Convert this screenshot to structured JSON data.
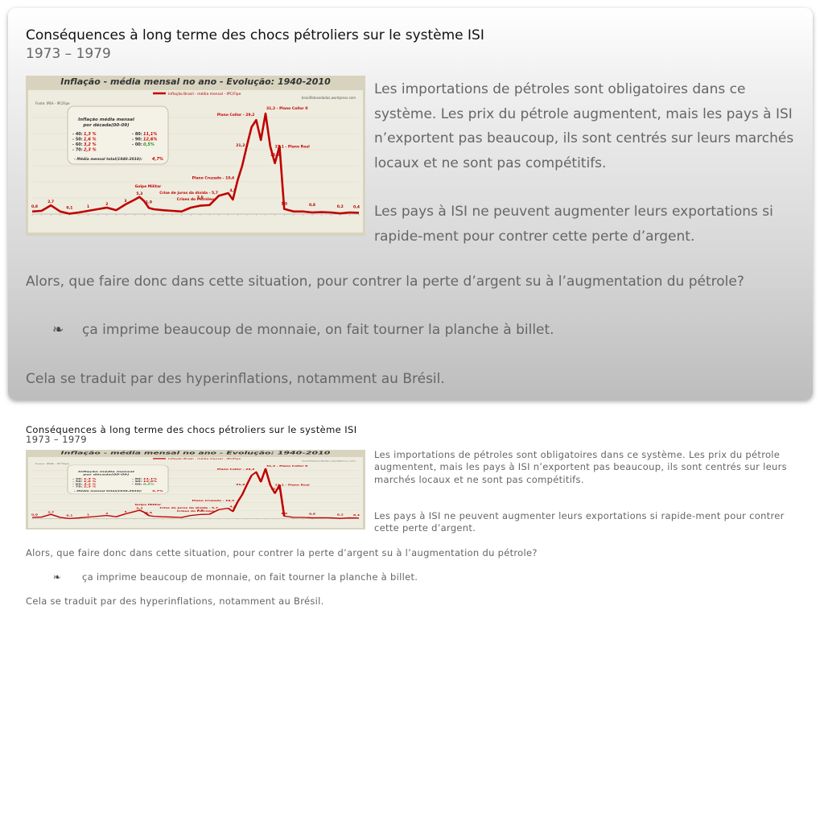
{
  "slide": {
    "title": "Conséquences à long terme des chocs pétroliers sur le système ISI",
    "subtitle": "1973 – 1979",
    "paragraph1": "Les importations de pétroles sont obligatoires dans ce système. Les prix du pétrole augmentent, mais les pays à ISI n’exportent pas beaucoup, ils sont centrés sur leurs marchés locaux et ne sont pas compétitifs.",
    "paragraph2": "Les pays à ISI ne peuvent augmenter leurs exportations si rapide-ment pour contrer cette perte d’argent.",
    "question": "Alors, que faire donc dans cette situation, pour contrer la perte d’argent su à l’augmentation du pétrole?",
    "bullet_glyph": "❧",
    "bullet": "ça imprime beaucoup de monnaie, on fait tourner la planche à billet.",
    "conclusion": "Cela se traduit par des hyperinflations, notamment au Brésil."
  },
  "figure": {
    "title": "Inflação - média mensal no ano - Evolução: 1940-2010",
    "legend": "Inflação Brasil - média mensal - IPC/Fipe",
    "source_left": "Fonte: IPEA - IPC/Fipe",
    "source_right": "brasilfatosedados.wordpress.com",
    "box_title_1": "Inflação média mensal",
    "box_title_2": "por década(00-09)",
    "decades": [
      {
        "label": "- 40:",
        "value": "1,3 %"
      },
      {
        "label": "- 50:",
        "value": "1,6 %"
      },
      {
        "label": "- 60:",
        "value": "3,2 %"
      },
      {
        "label": "- 70:",
        "value": "2,3 %"
      },
      {
        "label": "- 80:",
        "value": "11,1%"
      },
      {
        "label": "- 90:",
        "value": "12,6%"
      },
      {
        "label": "- 00:",
        "value": "0,5%"
      }
    ],
    "total_label": "- Média mensal total(1940-2010):",
    "total_value": "4,7%",
    "annotations": [
      {
        "text": "Plano Collor - 29,2"
      },
      {
        "text": "31,2 - Plano Collor II"
      },
      {
        "text": "21,1 - Plano Real"
      },
      {
        "text": "Plano Cruzado - 10,4"
      },
      {
        "text": "Crise de juros da dívida - 5,7"
      },
      {
        "text": "Crises do Petróleo"
      },
      {
        "text": "Golpe Militar"
      }
    ],
    "point_labels": [
      "0,8",
      "2,7",
      "0,1",
      "1",
      "2",
      "3",
      "5,3",
      "1,9",
      "2,6",
      "4,5",
      "21,2",
      "15,8",
      "1,6",
      "0,8",
      "0,2",
      "0,4"
    ]
  },
  "chart_data": {
    "type": "line",
    "title": "Inflação - média mensal no ano - Evolução: 1940-2010",
    "series": [
      {
        "name": "Inflação Brasil - média mensal - IPC/Fipe",
        "x": [
          1940,
          1942,
          1944,
          1946,
          1948,
          1950,
          1952,
          1954,
          1956,
          1958,
          1960,
          1962,
          1963,
          1964,
          1965,
          1966,
          1968,
          1970,
          1972,
          1974,
          1976,
          1978,
          1980,
          1982,
          1983,
          1984,
          1985,
          1986,
          1987,
          1988,
          1989,
          1990,
          1991,
          1992,
          1993,
          1994,
          1995,
          1996,
          1998,
          2000,
          2002,
          2004,
          2006,
          2008,
          2010
        ],
        "y": [
          0.8,
          1.0,
          2.7,
          0.8,
          0.1,
          0.5,
          1.0,
          1.5,
          2.0,
          1.2,
          3.0,
          4.5,
          5.3,
          4.0,
          1.9,
          1.5,
          1.2,
          1.0,
          0.8,
          2.0,
          2.6,
          2.8,
          5.7,
          6.5,
          4.5,
          10.4,
          15.0,
          21.2,
          27.0,
          29.2,
          23.0,
          31.2,
          21.1,
          15.8,
          21.1,
          1.6,
          1.2,
          0.8,
          0.8,
          0.5,
          0.6,
          0.5,
          0.2,
          0.5,
          0.4
        ]
      }
    ],
    "xlim": [
      1940,
      2010
    ],
    "ylim": [
      0,
      33
    ]
  }
}
